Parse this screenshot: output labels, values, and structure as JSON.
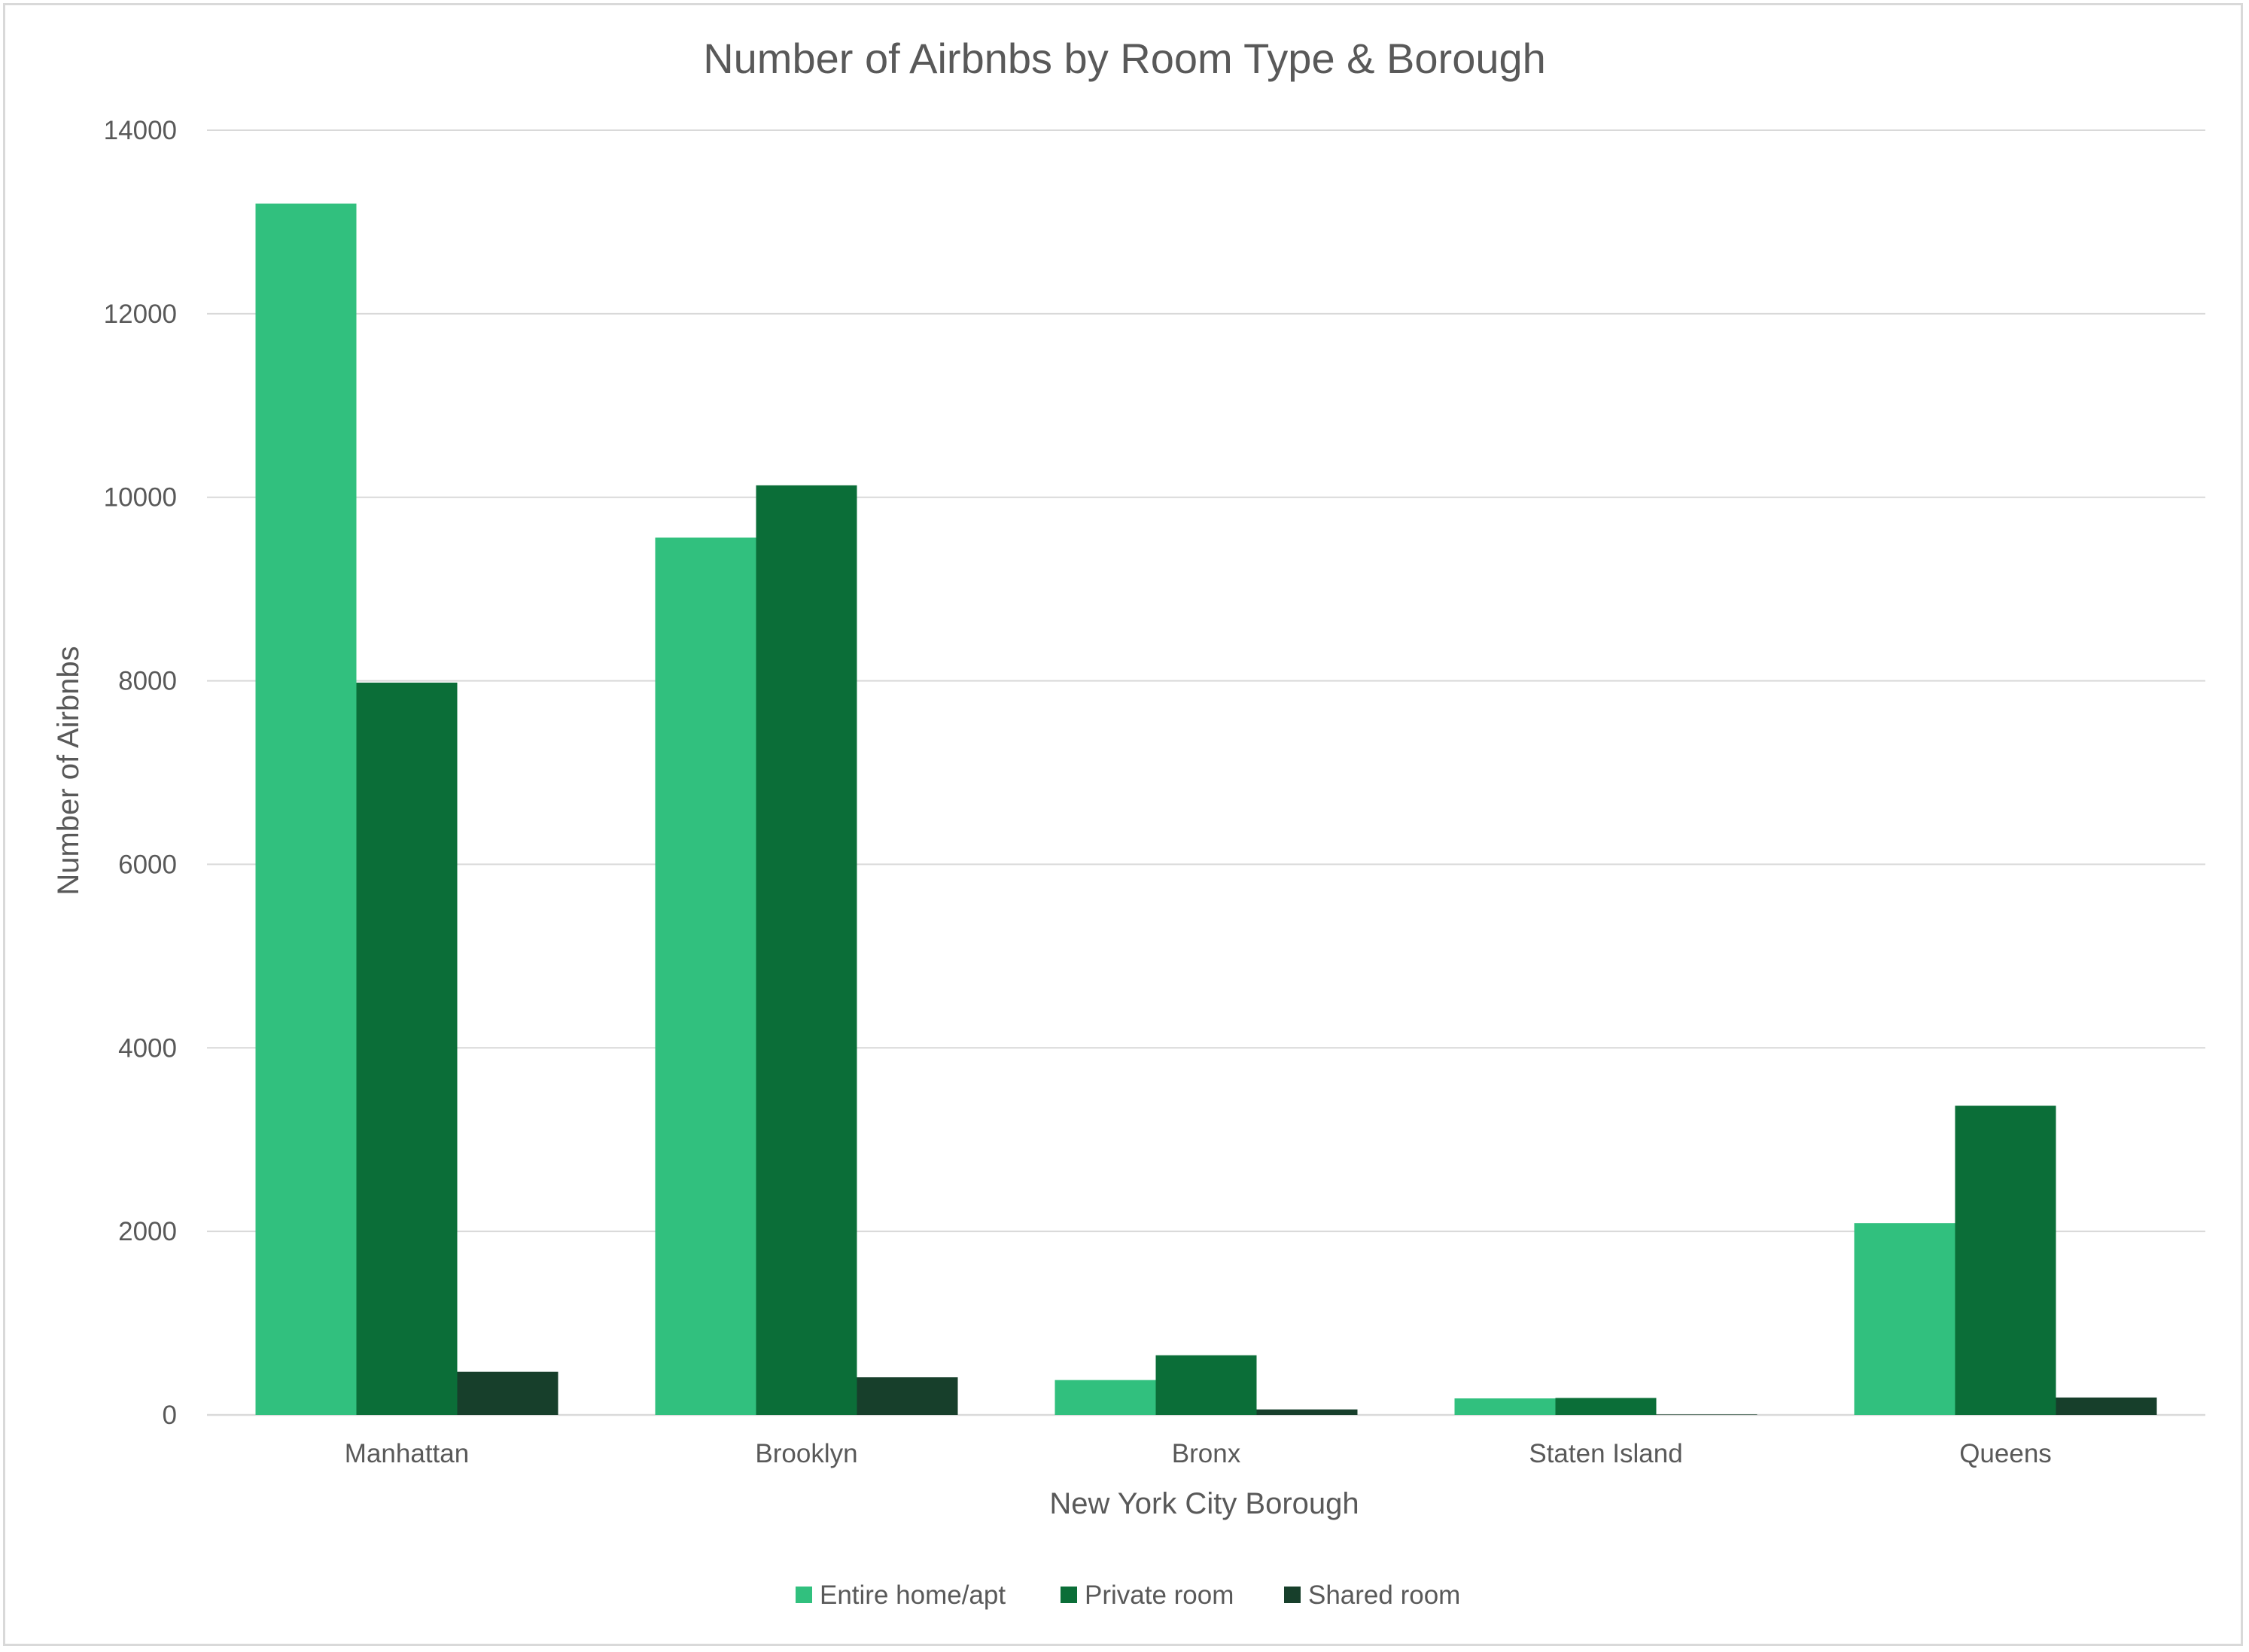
{
  "chart_data": {
    "type": "bar",
    "title": "Number of Airbnbs by Room Type & Borough",
    "xlabel": "New York City Borough",
    "ylabel": "Number of Airbnbs",
    "ylim": [
      0,
      14000
    ],
    "yticks": [
      "0",
      "2000",
      "4000",
      "6000",
      "8000",
      "10000",
      "12000",
      "14000"
    ],
    "grid": true,
    "legend_position": "bottom",
    "categories": [
      "Manhattan",
      "Brooklyn",
      "Bronx",
      "Staten Island",
      "Queens"
    ],
    "series": [
      {
        "name": "Entire home/apt",
        "color": "#31c07e",
        "values": [
          13200,
          9560,
          380,
          180,
          2090
        ]
      },
      {
        "name": "Private room",
        "color": "#0b6e38",
        "values": [
          7980,
          10130,
          650,
          185,
          3370
        ]
      },
      {
        "name": "Shared room",
        "color": "#173f2b",
        "values": [
          470,
          410,
          60,
          5,
          190
        ]
      }
    ]
  }
}
